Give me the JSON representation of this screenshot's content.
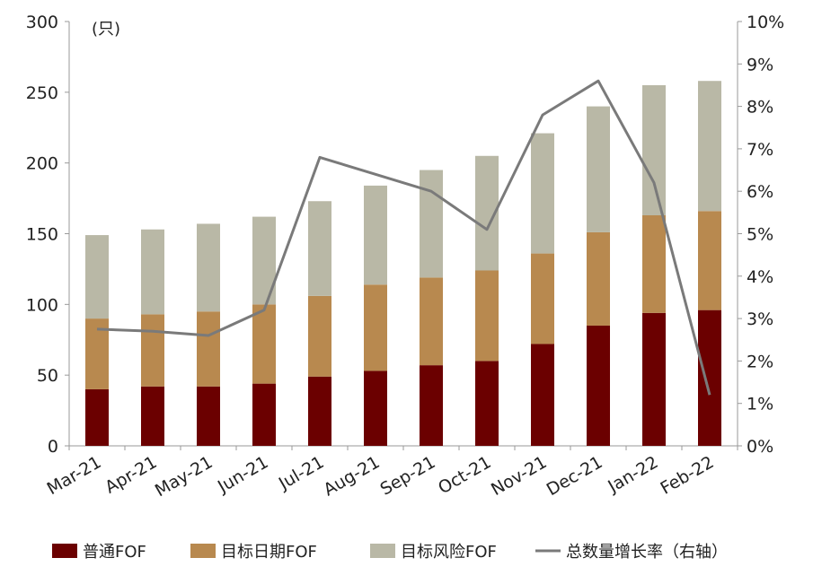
{
  "chart_data": {
    "type": "bar",
    "stacked": true,
    "categories": [
      "Mar-21",
      "Apr-21",
      "May-21",
      "Jun-21",
      "Jul-21",
      "Aug-21",
      "Sep-21",
      "Oct-21",
      "Nov-21",
      "Dec-21",
      "Jan-22",
      "Feb-22"
    ],
    "series": [
      {
        "name": "普通FOF",
        "color": "#6b0000",
        "values": [
          40,
          42,
          42,
          44,
          49,
          53,
          57,
          60,
          72,
          85,
          94,
          96
        ]
      },
      {
        "name": "目标日期FOF",
        "color": "#b8894f",
        "values": [
          50,
          51,
          53,
          56,
          57,
          61,
          62,
          64,
          64,
          66,
          69,
          70
        ]
      },
      {
        "name": "目标风险FOF",
        "color": "#b9b8a6",
        "values": [
          59,
          60,
          62,
          62,
          67,
          70,
          76,
          81,
          85,
          89,
          92,
          92
        ]
      }
    ],
    "line_series": {
      "name": "总数量增长率（右轴）",
      "color": "#7a7a7a",
      "axis": "right",
      "values": [
        0.0275,
        0.027,
        0.026,
        0.032,
        0.068,
        0.064,
        0.06,
        0.051,
        0.078,
        0.086,
        0.062,
        0.012
      ]
    },
    "y_left": {
      "label": "(只)",
      "range": [
        0,
        300
      ],
      "ticks": [
        0,
        50,
        100,
        150,
        200,
        250,
        300
      ]
    },
    "y_right": {
      "range": [
        0,
        0.1
      ],
      "ticks": [
        "0%",
        "1%",
        "2%",
        "3%",
        "4%",
        "5%",
        "6%",
        "7%",
        "8%",
        "9%",
        "10%"
      ]
    },
    "legend_position": "bottom",
    "grid": false
  }
}
